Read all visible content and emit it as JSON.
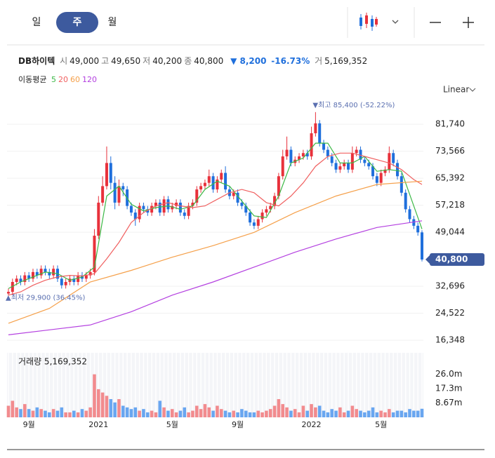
{
  "tabs": [
    "일",
    "주",
    "월"
  ],
  "info": {
    "name": "DB하이텍",
    "items": [
      {
        "label": "시",
        "value": "49,000"
      },
      {
        "label": "고",
        "value": "49,650"
      },
      {
        "label": "저",
        "value": "40,200"
      },
      {
        "label": "종",
        "value": "40,800"
      }
    ],
    "change": "▼ 8,200",
    "change_pct": "-16.73%",
    "volume_label": "거",
    "volume": "5,169,352"
  },
  "chart_data": {
    "type": "candlestick",
    "scale_label": "Linear",
    "ma_label": "이동평균",
    "open": [
      30500,
      31000,
      34000,
      35000,
      34000,
      36000,
      35000,
      37000,
      36000,
      38000,
      37000,
      36000,
      38000,
      35000,
      33000,
      34000,
      35000,
      34000,
      36000,
      35000,
      36000,
      37000,
      48000,
      58000,
      63000,
      70000,
      64000,
      58000,
      63000,
      62000,
      57000,
      55000,
      53000,
      57000,
      56000,
      55000,
      57000,
      58000,
      55000,
      59000,
      56000,
      57000,
      58000,
      55000,
      54000,
      57000,
      58000,
      62000,
      63000,
      64000,
      66000,
      62000,
      65000,
      67000,
      62000,
      60000,
      61000,
      58000,
      57000,
      55000,
      52000,
      51000,
      53000,
      55000,
      56000,
      57000,
      60000,
      66000,
      72000,
      74000,
      70000,
      71000,
      72000,
      73000,
      72000,
      79000,
      82000,
      76000,
      74000,
      72000,
      70000,
      68000,
      69000,
      70000,
      68000,
      73000,
      74000,
      71000,
      70000,
      69000,
      66000,
      64000,
      67000,
      68000,
      73000,
      70000,
      66000,
      61000,
      56000,
      53000,
      51000,
      49000
    ],
    "high": [
      32000,
      35000,
      36000,
      36000,
      37000,
      37000,
      38000,
      38000,
      39000,
      39000,
      38000,
      39000,
      39000,
      36000,
      35000,
      36000,
      36000,
      37000,
      37000,
      37000,
      38000,
      50000,
      60000,
      66000,
      75000,
      72000,
      66000,
      65000,
      64000,
      63000,
      58000,
      56000,
      58000,
      58000,
      57000,
      58000,
      59000,
      59000,
      60000,
      60000,
      58000,
      59000,
      59000,
      56000,
      58000,
      59000,
      63000,
      64000,
      65000,
      68000,
      67000,
      66000,
      68000,
      69000,
      63000,
      62000,
      62000,
      59000,
      58000,
      56000,
      53000,
      54000,
      56000,
      57000,
      58000,
      61000,
      67000,
      74000,
      78000,
      75000,
      72000,
      73000,
      74000,
      74000,
      81000,
      85400,
      83000,
      77000,
      75000,
      73000,
      71000,
      70000,
      71000,
      71000,
      75000,
      75000,
      75000,
      72000,
      71000,
      70000,
      67000,
      68000,
      69000,
      75000,
      74000,
      71000,
      67000,
      62000,
      57000,
      54000,
      52000,
      49650
    ],
    "low": [
      29900,
      30000,
      33000,
      33000,
      33000,
      34000,
      34000,
      35000,
      35000,
      36000,
      35000,
      35000,
      34000,
      32000,
      32000,
      33000,
      33000,
      33000,
      34000,
      34000,
      35000,
      36000,
      47000,
      57000,
      62000,
      62000,
      56000,
      57000,
      60000,
      56000,
      54000,
      51000,
      52000,
      55000,
      54000,
      54000,
      56000,
      54000,
      54000,
      55000,
      55000,
      56000,
      54000,
      53000,
      53000,
      56000,
      57000,
      61000,
      62000,
      63000,
      61000,
      61000,
      64000,
      61000,
      59000,
      59000,
      57000,
      56000,
      54000,
      51000,
      50000,
      50000,
      52000,
      54000,
      55000,
      56000,
      59000,
      65000,
      71000,
      69000,
      69000,
      70000,
      71000,
      71000,
      71000,
      78000,
      75000,
      73000,
      71000,
      69000,
      67000,
      67000,
      68000,
      67000,
      67000,
      72000,
      70000,
      69000,
      68000,
      65000,
      63000,
      63000,
      66000,
      67000,
      69000,
      65000,
      60000,
      55000,
      52000,
      50000,
      48000,
      40200
    ],
    "close": [
      31000,
      34000,
      35000,
      34000,
      36000,
      35000,
      37000,
      36000,
      38000,
      37000,
      36000,
      38000,
      35000,
      33000,
      34000,
      35000,
      34000,
      36000,
      35000,
      36000,
      37000,
      48000,
      58000,
      63000,
      70000,
      64000,
      58000,
      63000,
      62000,
      57000,
      55000,
      53000,
      57000,
      56000,
      55000,
      57000,
      58000,
      55000,
      59000,
      56000,
      57000,
      58000,
      55000,
      54000,
      57000,
      58000,
      62000,
      63000,
      64000,
      66000,
      62000,
      65000,
      67000,
      62000,
      60000,
      61000,
      58000,
      57000,
      55000,
      52000,
      51000,
      53000,
      55000,
      56000,
      57000,
      60000,
      66000,
      72000,
      74000,
      70000,
      71000,
      72000,
      73000,
      72000,
      79000,
      82000,
      76000,
      74000,
      72000,
      70000,
      68000,
      69000,
      70000,
      68000,
      73000,
      74000,
      71000,
      70000,
      69000,
      66000,
      64000,
      67000,
      68000,
      73000,
      70000,
      66000,
      61000,
      56000,
      53000,
      51000,
      49000,
      40800
    ],
    "ylim": [
      13200,
      88550
    ],
    "yticks": [
      {
        "value": 16348,
        "label": "16,348"
      },
      {
        "value": 24522,
        "label": "24,522"
      },
      {
        "value": 32696,
        "label": "32,696"
      },
      {
        "value": 49044,
        "label": "49,044"
      },
      {
        "value": 57218,
        "label": "57,218"
      },
      {
        "value": 65392,
        "label": "65,392"
      },
      {
        "value": 73566,
        "label": "73,566"
      },
      {
        "value": 81740,
        "label": "81,740"
      }
    ],
    "grid": true,
    "up_color": "#e8313b",
    "down_color": "#1f6fdc",
    "ma": [
      {
        "name": "5",
        "color": "#3cb846",
        "x": [
          0,
          3,
          6,
          9,
          12,
          15,
          18,
          21,
          24,
          27,
          30,
          33,
          36,
          39,
          42,
          45,
          48,
          51,
          54,
          57,
          60,
          63,
          66,
          69,
          72,
          75,
          78,
          81,
          84,
          87,
          90,
          93,
          96,
          99,
          101
        ],
        "values": [
          32000,
          34000,
          35500,
          37000,
          36500,
          34500,
          35500,
          38500,
          60000,
          63000,
          57500,
          55500,
          56500,
          57000,
          56000,
          57000,
          62000,
          64500,
          63000,
          58500,
          54000,
          53500,
          60000,
          70000,
          71500,
          76000,
          76000,
          70000,
          70000,
          72000,
          67500,
          68000,
          67500,
          57000,
          50000
        ]
      },
      {
        "name": "20",
        "color": "#f06060",
        "x": [
          0,
          3,
          6,
          9,
          12,
          15,
          18,
          21,
          24,
          27,
          30,
          33,
          36,
          39,
          42,
          45,
          48,
          51,
          54,
          57,
          60,
          63,
          66,
          69,
          72,
          75,
          78,
          81,
          84,
          87,
          90,
          93,
          96,
          99,
          101
        ],
        "values": [
          30000,
          31000,
          33000,
          34500,
          35500,
          36000,
          35800,
          36500,
          41000,
          46000,
          52000,
          55000,
          57000,
          58000,
          57000,
          56500,
          57000,
          59000,
          61000,
          62000,
          61000,
          58000,
          57000,
          60000,
          64000,
          69000,
          72000,
          73000,
          73000,
          72000,
          71000,
          70000,
          68000,
          65000,
          63500
        ]
      },
      {
        "name": "60",
        "color": "#f5a04a",
        "x": [
          0,
          10,
          20,
          30,
          40,
          50,
          60,
          70,
          80,
          90,
          101
        ],
        "values": [
          21500,
          26000,
          34000,
          37500,
          41500,
          45000,
          49000,
          55000,
          60000,
          63500,
          64500
        ]
      },
      {
        "name": "120",
        "color": "#b440e0",
        "x": [
          0,
          10,
          20,
          30,
          40,
          50,
          60,
          70,
          80,
          90,
          101
        ],
        "values": [
          18000,
          19500,
          21000,
          25000,
          30000,
          34000,
          38500,
          43000,
          47000,
          50500,
          52500
        ]
      }
    ],
    "annotations": [
      {
        "text": "▼최고 85,400 (-52.22%)",
        "index": 75,
        "value": 85400
      },
      {
        "text": "▲최저 29,900 (36.45%)",
        "index": 0,
        "value": 29900
      }
    ],
    "last_price_label": "40,800",
    "volume": {
      "title": "거래량 5,169,352",
      "ylim": [
        0,
        39000000
      ],
      "yticks": [
        {
          "value": 8670000,
          "label": "8.67m"
        },
        {
          "value": 17300000,
          "label": "17.3m"
        },
        {
          "value": 26000000,
          "label": "26.0m"
        }
      ],
      "values": [
        7000000,
        10000000,
        6000000,
        5000000,
        8000000,
        5000000,
        4000000,
        6000000,
        5000000,
        4000000,
        3000000,
        5000000,
        4000000,
        6000000,
        3000000,
        3000000,
        4000000,
        3000000,
        5000000,
        4000000,
        6000000,
        26000000,
        17000000,
        15000000,
        13000000,
        11000000,
        9000000,
        11000000,
        7000000,
        6000000,
        5000000,
        6000000,
        4000000,
        5000000,
        3000000,
        4000000,
        3000000,
        10000000,
        6000000,
        4000000,
        5000000,
        3000000,
        4000000,
        6000000,
        3000000,
        4000000,
        7000000,
        5000000,
        8000000,
        6000000,
        4000000,
        7000000,
        5000000,
        4000000,
        3000000,
        4000000,
        3000000,
        5000000,
        4000000,
        3000000,
        3000000,
        4000000,
        3000000,
        4000000,
        5000000,
        7000000,
        11000000,
        8000000,
        6000000,
        4000000,
        5000000,
        3000000,
        7000000,
        4000000,
        8000000,
        6000000,
        7000000,
        4000000,
        3000000,
        5000000,
        4000000,
        6000000,
        3000000,
        4000000,
        7000000,
        5000000,
        4000000,
        3000000,
        4000000,
        6000000,
        3000000,
        4000000,
        3000000,
        5000000,
        3000000,
        4000000,
        4000000,
        3000000,
        5000000,
        4000000,
        4000000,
        5169352
      ]
    },
    "xlabels": [
      {
        "index": 5,
        "label": "9월"
      },
      {
        "index": 22,
        "label": "2021"
      },
      {
        "index": 40,
        "label": "5월"
      },
      {
        "index": 56,
        "label": "9월"
      },
      {
        "index": 74,
        "label": "2022"
      },
      {
        "index": 91,
        "label": "5월"
      }
    ]
  }
}
